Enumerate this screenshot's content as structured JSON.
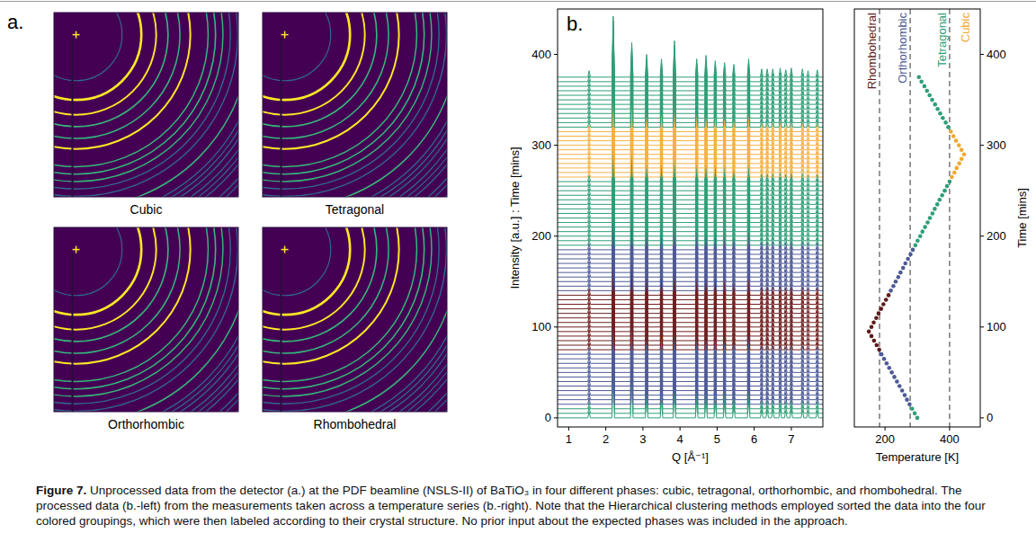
{
  "panel_a": {
    "letter": "a.",
    "images": [
      {
        "label": "Cubic"
      },
      {
        "label": "Tetragonal"
      },
      {
        "label": "Orthorhombic"
      },
      {
        "label": "Rhombohedral"
      }
    ]
  },
  "panel_b": {
    "letter": "b."
  },
  "chart_data": [
    {
      "type": "line",
      "xlabel": "Q [Å⁻¹]",
      "ylabel": "Intensity [a.u.] : Time [mins]",
      "xlim": [
        0.7,
        7.85
      ],
      "xticks": [
        1,
        2,
        3,
        4,
        5,
        6,
        7
      ],
      "ylim": [
        -10,
        450
      ],
      "yticks": [
        0,
        100,
        200,
        300,
        400
      ],
      "peaks": {
        "x": [
          1.55,
          2.2,
          2.7,
          3.1,
          3.5,
          3.85,
          4.45,
          4.7,
          4.95,
          5.2,
          5.45,
          5.85,
          6.2,
          6.35,
          6.5,
          6.7,
          6.85,
          7.0,
          7.3,
          7.45,
          7.7
        ],
        "values": [
          7,
          67,
          38,
          25,
          20,
          40,
          20,
          24,
          18,
          16,
          14,
          20,
          9,
          9,
          9,
          10,
          8,
          10,
          9,
          7,
          8
        ]
      },
      "series": [
        {
          "color": "#2e9e76",
          "values": [
            0,
            5,
            10
          ]
        },
        {
          "color": "#4e5a96",
          "values": [
            15,
            20,
            25,
            30,
            35,
            40,
            45,
            50,
            55,
            60,
            65,
            70
          ]
        },
        {
          "color": "#6e1f1f",
          "values": [
            75,
            80,
            85,
            90,
            95,
            100,
            105,
            110,
            115,
            120,
            125,
            130,
            135
          ]
        },
        {
          "color": "#4e5a96",
          "values": [
            140,
            145,
            150,
            155,
            160,
            165,
            170,
            175,
            180,
            185
          ]
        },
        {
          "color": "#2e9e76",
          "values": [
            190,
            195,
            200,
            205,
            210,
            215,
            220,
            225,
            230,
            235,
            240,
            245,
            250,
            255,
            260
          ]
        },
        {
          "color": "#f5b142",
          "values": [
            265,
            270,
            275,
            280,
            285,
            290,
            295,
            300,
            305,
            310,
            315
          ]
        },
        {
          "color": "#2e9e76",
          "values": [
            320,
            325,
            330,
            335,
            340,
            345,
            350,
            355,
            360,
            365,
            370,
            375
          ]
        }
      ]
    },
    {
      "type": "scatter",
      "xlabel": "Temperature [K]",
      "ylabel": "Time [mins]",
      "xlim": [
        105,
        495
      ],
      "xticks": [
        200,
        400
      ],
      "ylim": [
        -10,
        450
      ],
      "yticks": [
        0,
        100,
        200,
        300,
        400
      ],
      "boundaries": [
        183,
        278,
        400
      ],
      "series": [
        {
          "name": "Rhombohedral",
          "color": "#5e1a1a",
          "x": [
            182,
            174,
            166,
            158,
            150,
            158,
            165,
            173,
            180,
            188,
            195,
            203,
            211
          ],
          "values": [
            75,
            80,
            85,
            90,
            95,
            100,
            105,
            110,
            115,
            120,
            125,
            130,
            135
          ]
        },
        {
          "name": "Orthorhombic",
          "color": "#4e5a96",
          "x": [
            276,
            268,
            261,
            253,
            245,
            237,
            229,
            221,
            213,
            205,
            197,
            189,
            218,
            226,
            233,
            241,
            248,
            256,
            263,
            271,
            279,
            286
          ],
          "values": [
            15,
            20,
            25,
            30,
            35,
            40,
            45,
            50,
            55,
            60,
            65,
            70,
            140,
            145,
            150,
            155,
            160,
            165,
            170,
            175,
            180,
            185
          ]
        },
        {
          "name": "Tetragonal",
          "color": "#2e9e76",
          "x": [
            300,
            292,
            284,
            294,
            301,
            309,
            316,
            324,
            332,
            339,
            347,
            354,
            362,
            369,
            377,
            385,
            392,
            400,
            396,
            388,
            379,
            371,
            363,
            355,
            346,
            338,
            330,
            322,
            313,
            305
          ],
          "values": [
            0,
            5,
            10,
            190,
            195,
            200,
            205,
            210,
            215,
            220,
            225,
            230,
            235,
            240,
            245,
            250,
            255,
            260,
            320,
            325,
            330,
            335,
            340,
            345,
            350,
            355,
            360,
            365,
            370,
            375
          ]
        },
        {
          "name": "Cubic",
          "color": "#f0a830",
          "x": [
            407,
            415,
            422,
            430,
            437,
            445,
            437,
            429,
            420,
            412,
            404
          ],
          "values": [
            265,
            270,
            275,
            280,
            285,
            290,
            295,
            300,
            305,
            310,
            315
          ]
        }
      ]
    }
  ],
  "caption": {
    "label": "Figure 7.",
    "text": "Unprocessed data from the detector (a.) at the PDF beamline (NSLS-II) of BaTiO₃ in four different phases: cubic, tetragonal, orthorhombic, and rhombohedral. The processed data (b.-left) from the measurements taken across a temperature series (b.-right). Note that the Hierarchical clustering methods employed sorted the data into the four colored groupings, which were then labeled according to their crystal structure. No prior input about the expected phases was included in the approach."
  }
}
